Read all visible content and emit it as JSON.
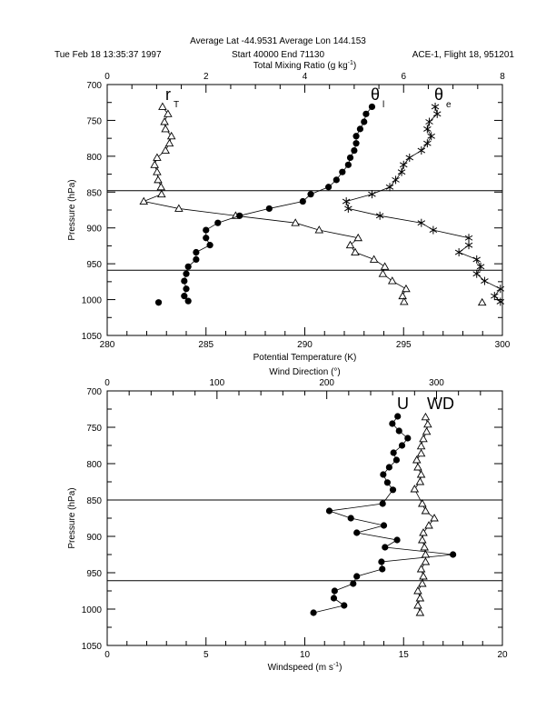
{
  "header": {
    "line1": "Average Lat  -44.9531   Average Lon  144.153",
    "left": "Tue Feb 18 13:35:37 1997",
    "center": "Start  40000  End  71130",
    "right": "ACE-1, Flight 18, 951201"
  },
  "chart_data": [
    {
      "type": "line",
      "title": "",
      "ylabel": "Pressure (hPa)",
      "ylim": [
        1050,
        700
      ],
      "yticks": [
        700,
        750,
        800,
        850,
        900,
        950,
        1000,
        1050
      ],
      "xlabel": "Potential Temperature (K)",
      "xlim": [
        280,
        300
      ],
      "xticks": [
        280,
        285,
        290,
        295,
        300
      ],
      "x2label": "Total Mixing Ratio (g kg",
      "x2label_sup": "-1",
      "x2label_end": ")",
      "x2lim": [
        0,
        8
      ],
      "x2ticks": [
        0,
        2,
        4,
        6,
        8
      ],
      "hlines": [
        848,
        959
      ],
      "labels": [
        {
          "text": "r",
          "sub": "T"
        },
        {
          "text": "θ",
          "sub": "l"
        },
        {
          "text": "θ",
          "sub": "e"
        }
      ],
      "series": [
        {
          "name": "r_T",
          "axis": "x2",
          "marker": "triangle",
          "x": [
            1.12,
            1.23,
            1.16,
            1.18,
            1.3,
            1.26,
            1.18,
            1.01,
            0.96,
            1.01,
            1.03,
            1.09,
            1.1,
            0.74,
            1.45,
            2.6,
            3.81,
            4.29,
            5.08,
            4.92,
            5.02,
            5.4,
            5.62,
            5.58,
            5.77,
            6.05,
            5.98,
            6.01
          ],
          "y": [
            731,
            741,
            752,
            762,
            772,
            782,
            792,
            802,
            812,
            822,
            833,
            843,
            853,
            863,
            873,
            883,
            893,
            903,
            914,
            924,
            934,
            944,
            954,
            964,
            974,
            985,
            995,
            1003
          ],
          "extra": {
            "x": [
              7.59
            ],
            "y": [
              1004
            ]
          }
        },
        {
          "name": "theta_l",
          "axis": "x",
          "marker": "circle",
          "x": [
            293.4,
            293.1,
            293.0,
            292.8,
            292.6,
            292.6,
            292.5,
            292.3,
            292.2,
            291.9,
            291.6,
            291.2,
            290.3,
            289.9,
            288.2,
            286.7,
            285.6,
            285.0,
            285.0,
            285.2,
            284.5,
            284.5,
            284.1,
            284.0,
            283.9,
            284.0,
            283.9,
            284.1
          ],
          "y": [
            731,
            741,
            752,
            762,
            772,
            782,
            792,
            802,
            812,
            822,
            833,
            843,
            853,
            863,
            873,
            883,
            893,
            903,
            914,
            924,
            934,
            944,
            954,
            964,
            974,
            985,
            995,
            1002
          ],
          "extra": {
            "x": [
              282.6
            ],
            "y": [
              1004
            ]
          }
        },
        {
          "name": "theta_e",
          "axis": "x",
          "marker": "star",
          "x": [
            296.6,
            296.7,
            296.3,
            296.2,
            296.4,
            296.2,
            295.9,
            295.3,
            295.0,
            294.9,
            294.6,
            294.3,
            293.4,
            292.1,
            292.2,
            293.8,
            295.9,
            296.5,
            298.3,
            298.3,
            297.8,
            298.7,
            298.9,
            298.7,
            299.1,
            299.9,
            299.6,
            299.9
          ],
          "y": [
            731,
            741,
            752,
            762,
            772,
            782,
            792,
            802,
            812,
            822,
            833,
            843,
            853,
            863,
            873,
            883,
            893,
            903,
            914,
            924,
            934,
            944,
            954,
            964,
            974,
            985,
            995,
            1003
          ]
        }
      ]
    },
    {
      "type": "line",
      "title": "",
      "ylabel": "Pressure (hPa)",
      "ylim": [
        1050,
        700
      ],
      "yticks": [
        700,
        750,
        800,
        850,
        900,
        950,
        1000,
        1050
      ],
      "xlabel": "Windspeed (m s",
      "xlabel_sup": "-1",
      "xlabel_end": ")",
      "xlim": [
        0,
        20
      ],
      "xticks": [
        0,
        5,
        10,
        15,
        20
      ],
      "x2label": "Wind Direction (°)",
      "x2lim": [
        0,
        360
      ],
      "x2ticks": [
        0,
        100,
        200,
        300
      ],
      "hlines": [
        850,
        961
      ],
      "labels": [
        {
          "text": "U"
        },
        {
          "text": "WD"
        }
      ],
      "series": [
        {
          "name": "U",
          "axis": "x",
          "marker": "circle",
          "x": [
            14.7,
            14.43,
            14.77,
            15.21,
            14.92,
            14.49,
            14.64,
            14.27,
            13.97,
            14.18,
            14.46,
            13.94,
            11.24,
            12.33,
            14.0,
            12.63,
            14.67,
            14.06,
            17.5,
            13.88,
            13.92,
            12.63,
            12.45,
            11.51,
            11.47,
            11.99,
            10.44
          ],
          "y": [
            735,
            745,
            755,
            765,
            775,
            785,
            795,
            805,
            815,
            826,
            836,
            855,
            865,
            875,
            885,
            895,
            905,
            915,
            925,
            935,
            945,
            955,
            965,
            975,
            985,
            995,
            1005
          ]
        },
        {
          "name": "WD",
          "axis": "x2",
          "marker": "triangle",
          "x": [
            290,
            292,
            291,
            288,
            286,
            286,
            282,
            283,
            286,
            285,
            280,
            287,
            290,
            298,
            293,
            288,
            287,
            289,
            290,
            290,
            286,
            288,
            287,
            283,
            285,
            283,
            285
          ],
          "y": [
            736,
            746,
            756,
            766,
            776,
            786,
            795,
            805,
            815,
            825,
            835,
            855,
            865,
            875,
            885,
            895,
            905,
            915,
            925,
            935,
            945,
            955,
            965,
            975,
            985,
            995,
            1005
          ]
        }
      ]
    }
  ]
}
